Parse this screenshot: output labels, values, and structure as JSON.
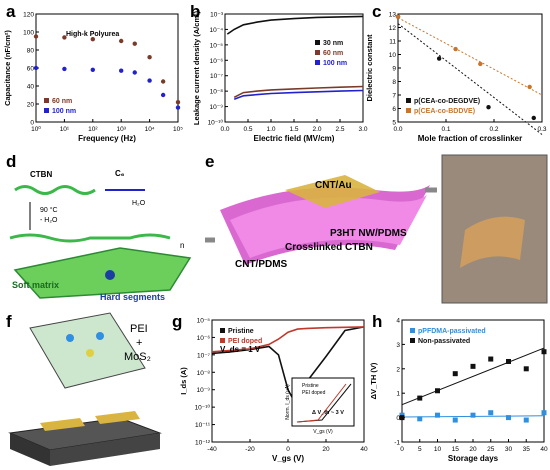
{
  "panel_labels": {
    "a": "a",
    "b": "b",
    "c": "c",
    "d": "d",
    "e": "e",
    "f": "f",
    "g": "g",
    "h": "h"
  },
  "colors": {
    "brown": "#7a3a2a",
    "blue": "#2222cc",
    "orange": "#c8752a",
    "black": "#111111",
    "red": "#c0392b",
    "lightblue": "#2f8fe0",
    "magenta": "#d24fc8",
    "green": "#3cb84a",
    "gold": "#d9b440"
  },
  "chart_data": [
    {
      "id": "a",
      "type": "scatter",
      "title": "",
      "inset_label": "High-k Polyurea",
      "xlabel": "Frequency (Hz)",
      "ylabel": "Capacitance (nF/cm²)",
      "xscale": "log",
      "xlim": [
        1,
        100000
      ],
      "ylim": [
        0,
        120
      ],
      "xticks": [
        "10⁰",
        "10¹",
        "10²",
        "10³",
        "10⁴",
        "10⁵"
      ],
      "yticks": [
        "0",
        "20",
        "40",
        "60",
        "80",
        "100",
        "120"
      ],
      "legend": "bottom-left",
      "series": [
        {
          "name": "60 nm",
          "color": "#7a3a2a",
          "x": [
            1,
            10,
            100,
            1000,
            3000,
            10000,
            30000,
            100000
          ],
          "y": [
            95,
            94,
            92,
            90,
            87,
            72,
            45,
            22
          ]
        },
        {
          "name": "100 nm",
          "color": "#2222cc",
          "x": [
            1,
            10,
            100,
            1000,
            3000,
            10000,
            30000,
            100000
          ],
          "y": [
            60,
            59,
            58,
            57,
            55,
            46,
            30,
            16
          ]
        }
      ]
    },
    {
      "id": "b",
      "type": "line",
      "xlabel": "Electric field (MV/cm)",
      "ylabel": "Leakage current density (A/cm²)",
      "yscale": "log",
      "xlim": [
        0,
        3
      ],
      "ylim": [
        1e-10,
        0.001
      ],
      "xticks": [
        "0.0",
        "0.5",
        "1.0",
        "1.5",
        "2.0",
        "2.5",
        "3.0"
      ],
      "yticks": [
        "10⁻¹⁰",
        "10⁻⁹",
        "10⁻⁸",
        "10⁻⁷",
        "10⁻⁶",
        "10⁻⁵",
        "10⁻⁴",
        "10⁻³"
      ],
      "legend": "right",
      "series": [
        {
          "name": "30 nm",
          "color": "#111111",
          "x": [
            0.05,
            0.2,
            0.4,
            0.7,
            1.0,
            1.5,
            2.0,
            2.5,
            3.0
          ],
          "y": [
            5e-05,
            0.0001,
            0.0002,
            0.0003,
            0.0004,
            0.0005,
            0.0006,
            0.00065,
            0.0007
          ]
        },
        {
          "name": "60 nm",
          "color": "#7a3a2a",
          "x": [
            0.2,
            0.4,
            0.7,
            1.0,
            1.5,
            2.0,
            2.5,
            3.0
          ],
          "y": [
            4e-09,
            8e-09,
            1e-08,
            1.2e-08,
            1.4e-08,
            1.6e-08,
            1.8e-08,
            2e-08
          ]
        },
        {
          "name": "100 nm",
          "color": "#2222cc",
          "x": [
            0.2,
            0.4,
            0.7,
            1.0,
            1.5,
            2.0,
            2.5,
            3.0
          ],
          "y": [
            3e-09,
            5e-09,
            6e-09,
            7e-09,
            8e-09,
            9e-09,
            1e-08,
            1.1e-08
          ]
        }
      ]
    },
    {
      "id": "c",
      "type": "scatter",
      "xlabel": "Mole fraction of crosslinker",
      "ylabel": "Dielectric constant",
      "xlim": [
        0,
        0.35
      ],
      "ylim": [
        5,
        13
      ],
      "xticks": [
        "0.0",
        "0.1",
        "0.2",
        "0.3"
      ],
      "yticks": [
        "5",
        "6",
        "7",
        "8",
        "9",
        "10",
        "11",
        "12",
        "13"
      ],
      "legend": "bottom-left",
      "series": [
        {
          "name": "p(CEA-co-DEGDVE)",
          "color": "#111111",
          "x": [
            0.0,
            0.1,
            0.22,
            0.33
          ],
          "y": [
            12.8,
            9.7,
            6.1,
            5.3
          ]
        },
        {
          "name": "p(CEA-co-BDDVE)",
          "color": "#c8752a",
          "x": [
            0.0,
            0.14,
            0.2,
            0.32
          ],
          "y": [
            12.8,
            10.4,
            9.3,
            7.6
          ]
        }
      ]
    },
    {
      "id": "g",
      "type": "line",
      "xlabel": "V_gs (V)",
      "ylabel": "I_ds (A)",
      "yscale": "log",
      "xlim": [
        -40,
        40
      ],
      "ylim": [
        1e-12,
        1e-05
      ],
      "xticks": [
        "-40",
        "-20",
        "0",
        "20",
        "40"
      ],
      "yticks": [
        "10⁻¹²",
        "10⁻¹¹",
        "10⁻¹⁰",
        "10⁻⁹",
        "10⁻⁸",
        "10⁻⁷",
        "10⁻⁶",
        "10⁻⁵"
      ],
      "annotation": "V_ds = 1 V",
      "legend": "top-left",
      "series": [
        {
          "name": "Pristine",
          "color": "#111111",
          "x": [
            -40,
            -30,
            -20,
            -10,
            -5,
            0,
            5,
            10,
            20,
            30,
            40
          ],
          "y": [
            1.2e-07,
            1.5e-07,
            2e-07,
            3e-07,
            1e-07,
            1e-09,
            1e-10,
            3e-09,
            8e-08,
            2.5e-06,
            4e-06
          ]
        },
        {
          "name": "PEI doped",
          "color": "#c0392b",
          "x": [
            -40,
            -30,
            -20,
            -10,
            -5,
            0,
            5,
            10,
            20,
            30,
            40
          ],
          "y": [
            1.5e-07,
            1.8e-07,
            2.2e-07,
            4e-07,
            8e-07,
            2e-06,
            3e-06,
            3.3e-06,
            3.6e-06,
            3.8e-06,
            4e-06
          ]
        }
      ],
      "inset": {
        "ylabel": "Norm. I_ds (μA)",
        "xlabel": "V_gs (V)",
        "annotation": "Δ V_th ~ 3 V",
        "legend": [
          "Pristine",
          "PEI doped"
        ]
      }
    },
    {
      "id": "h",
      "type": "scatter",
      "xlabel": "Storage days",
      "ylabel": "ΔV_TH (V)",
      "xlim": [
        0,
        40
      ],
      "ylim": [
        -1,
        4
      ],
      "xticks": [
        "0",
        "5",
        "10",
        "15",
        "20",
        "25",
        "30",
        "35",
        "40"
      ],
      "yticks": [
        "-1",
        "0",
        "1",
        "2",
        "3",
        "4"
      ],
      "legend": "top-left",
      "series": [
        {
          "name": "pPFDMA-passivated",
          "color": "#2f8fe0",
          "x": [
            0,
            5,
            10,
            15,
            20,
            25,
            30,
            35,
            40
          ],
          "y": [
            0.1,
            -0.05,
            0.1,
            -0.1,
            0.1,
            0.2,
            0.0,
            -0.1,
            0.2
          ]
        },
        {
          "name": "Non-passivated",
          "color": "#111111",
          "x": [
            0,
            5,
            10,
            15,
            20,
            25,
            30,
            35,
            40
          ],
          "y": [
            0.0,
            0.8,
            1.1,
            1.8,
            2.1,
            2.4,
            2.3,
            2.0,
            2.7
          ]
        }
      ]
    }
  ],
  "panel_d": {
    "ctbn": "CTBN",
    "c6": "C₆",
    "temp": "90 °C",
    "water1": "- H₂O",
    "water2": "H₂O",
    "n": "n",
    "soft": "Soft matrix",
    "hard": "Hard segments"
  },
  "panel_e": {
    "cnt_au": "CNT/Au",
    "p3ht": "P3HT NW/PDMS",
    "ctbn": "Crosslinked CTBN",
    "cnt_pdms": "CNT/PDMS"
  },
  "panel_f": {
    "label1": "PEI",
    "label2": "+",
    "label3": "MoS₂"
  }
}
